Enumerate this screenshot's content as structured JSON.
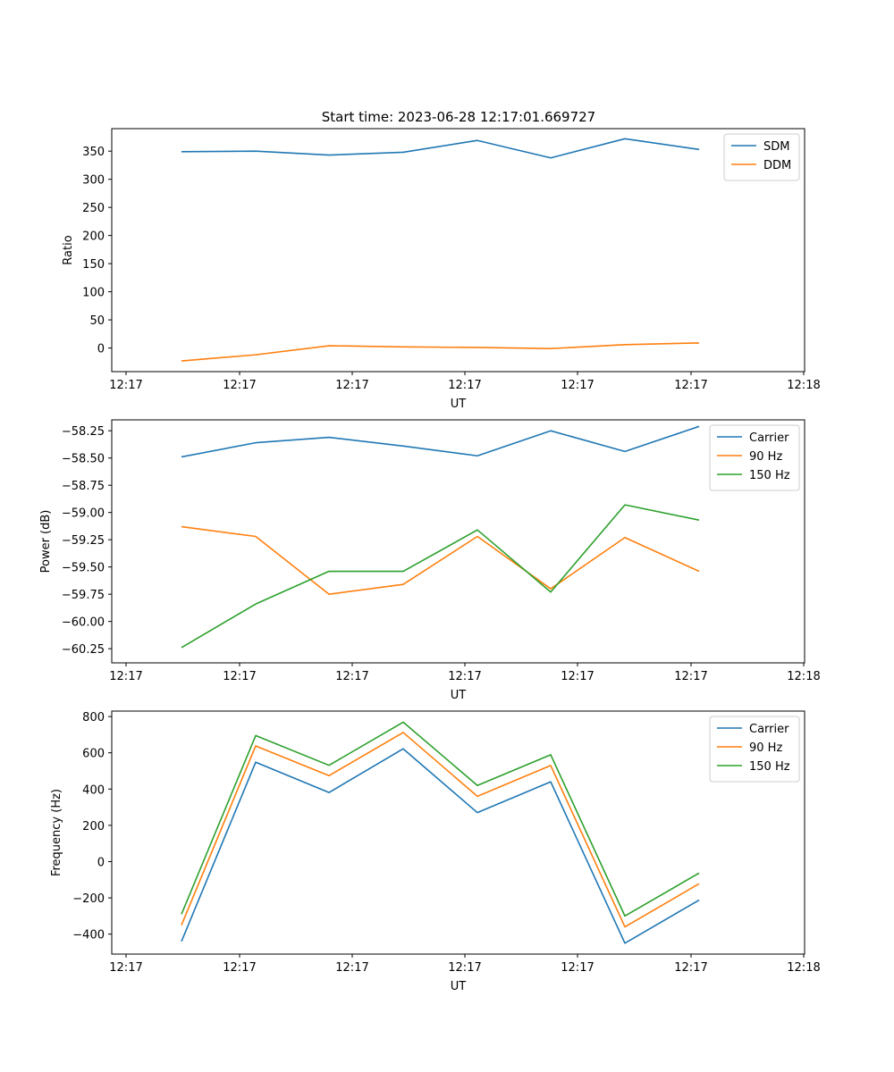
{
  "figure": {
    "title": "Start time: 2023-06-28 12:17:01.669727"
  },
  "chart_data": [
    {
      "type": "line",
      "title": "Start time: 2023-06-28 12:17:01.669727",
      "xlabel": "UT",
      "ylabel": "Ratio",
      "x_tick_labels": [
        "12:17",
        "12:17",
        "12:17",
        "12:17",
        "12:17",
        "12:17"
      ],
      "x_last_tick_label": "12:18",
      "ylim": [
        -42,
        390
      ],
      "y_ticks": [
        0,
        50,
        100,
        150,
        200,
        250,
        300,
        350
      ],
      "y_tick_labels": [
        "0",
        "50",
        "100",
        "150",
        "200",
        "250",
        "300",
        "350"
      ],
      "grid": false,
      "legend_position": "top-right",
      "series": [
        {
          "name": "SDM",
          "color": "#1f77b4",
          "values": [
            349,
            350,
            343,
            348,
            369,
            338,
            372,
            353
          ]
        },
        {
          "name": "DDM",
          "color": "#ff7f0e",
          "values": [
            -23,
            -12,
            4,
            2,
            1,
            -1,
            6,
            9
          ]
        }
      ]
    },
    {
      "type": "line",
      "xlabel": "UT",
      "ylabel": "Power (dB)",
      "x_tick_labels": [
        "12:17",
        "12:17",
        "12:17",
        "12:17",
        "12:17",
        "12:17"
      ],
      "x_last_tick_label": "12:18",
      "ylim": [
        -60.38,
        -58.15
      ],
      "y_ticks": [
        -60.25,
        -60.0,
        -59.75,
        -59.5,
        -59.25,
        -59.0,
        -58.75,
        -58.5,
        -58.25
      ],
      "y_tick_labels": [
        "−60.25",
        "−60.00",
        "−59.75",
        "−59.50",
        "−59.25",
        "−59.00",
        "−58.75",
        "−58.50",
        "−58.25"
      ],
      "grid": false,
      "legend_position": "top-right",
      "series": [
        {
          "name": "Carrier",
          "color": "#1f77b4",
          "values": [
            -58.49,
            -58.36,
            -58.31,
            -58.39,
            -58.48,
            -58.25,
            -58.44,
            -58.21
          ]
        },
        {
          "name": "90 Hz",
          "color": "#ff7f0e",
          "values": [
            -59.13,
            -59.22,
            -59.75,
            -59.66,
            -59.22,
            -59.7,
            -59.23,
            -59.54
          ]
        },
        {
          "name": "150 Hz",
          "color": "#2ca02c",
          "values": [
            -60.24,
            -59.84,
            -59.54,
            -59.54,
            -59.16,
            -59.73,
            -58.93,
            -59.07
          ]
        }
      ]
    },
    {
      "type": "line",
      "xlabel": "UT",
      "ylabel": "Frequency (Hz)",
      "x_tick_labels": [
        "12:17",
        "12:17",
        "12:17",
        "12:17",
        "12:17",
        "12:17"
      ],
      "x_last_tick_label": "12:18",
      "ylim": [
        -510,
        830
      ],
      "y_ticks": [
        -400,
        -200,
        0,
        200,
        400,
        600,
        800
      ],
      "y_tick_labels": [
        "−400",
        "−200",
        "0",
        "200",
        "400",
        "600",
        "800"
      ],
      "grid": false,
      "legend_position": "top-right",
      "series": [
        {
          "name": "Carrier",
          "color": "#1f77b4",
          "values": [
            -440,
            548,
            381,
            622,
            270,
            440,
            -450,
            -212
          ]
        },
        {
          "name": "90 Hz",
          "color": "#ff7f0e",
          "values": [
            -350,
            638,
            474,
            712,
            360,
            530,
            -360,
            -122
          ]
        },
        {
          "name": "150 Hz",
          "color": "#2ca02c",
          "values": [
            -290,
            695,
            531,
            769,
            420,
            589,
            -300,
            -63
          ]
        }
      ]
    }
  ]
}
